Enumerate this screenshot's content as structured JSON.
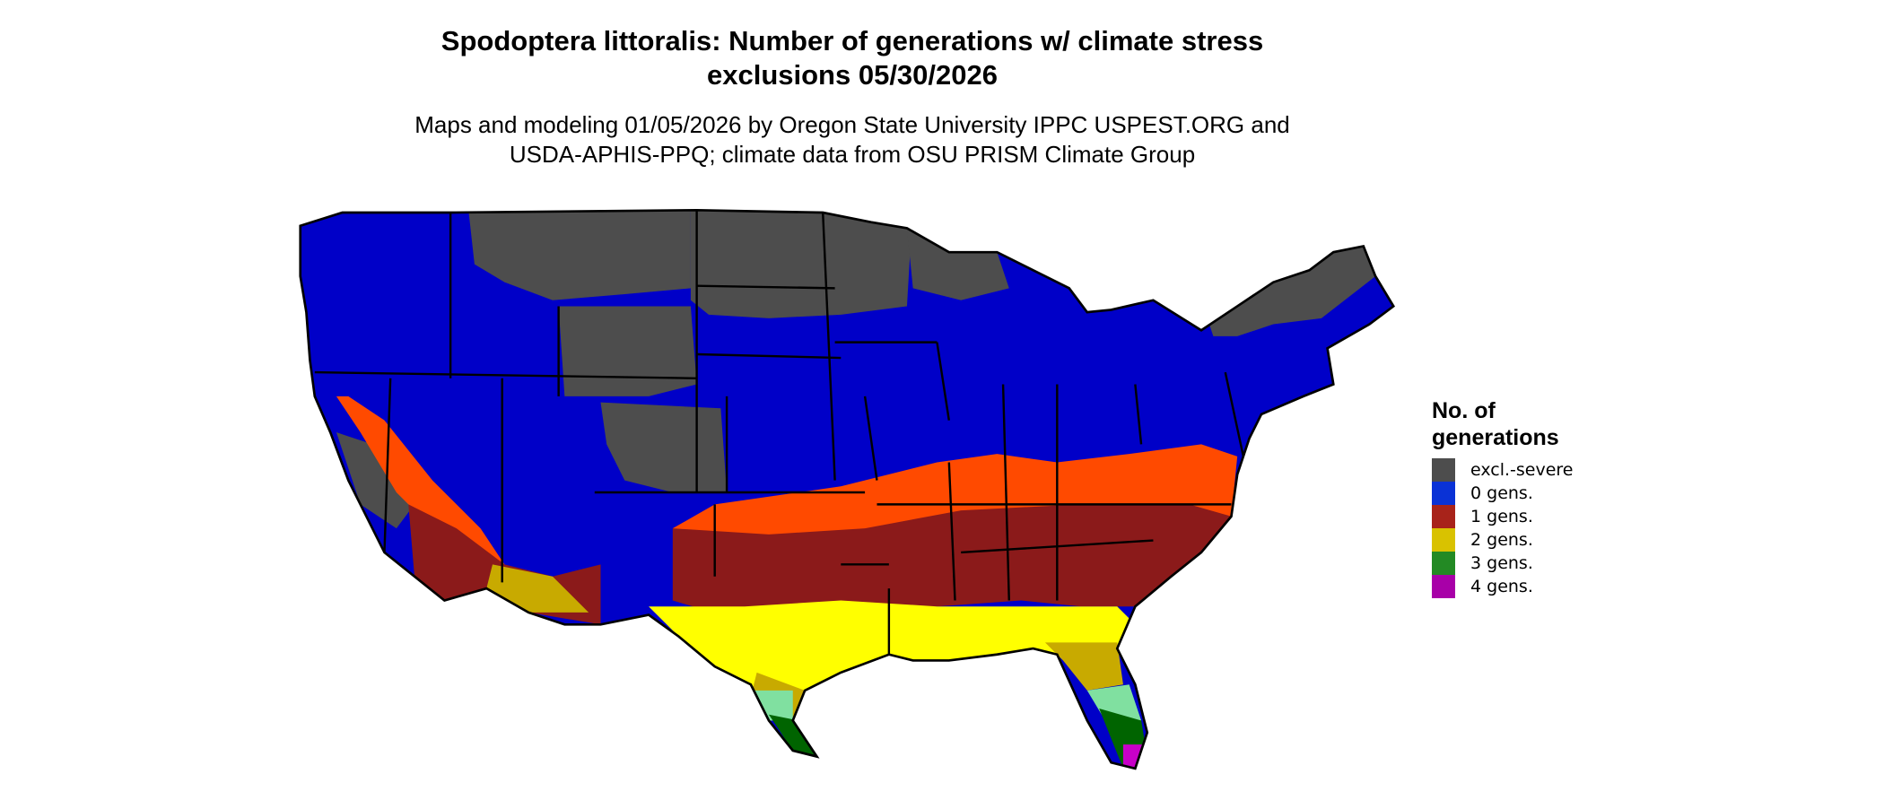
{
  "title_line1": "Spodoptera littoralis: Number of generations w/ climate stress",
  "title_line2": "exclusions 05/30/2026",
  "subtitle_line1": "Maps and modeling 01/05/2026 by Oregon State University IPPC USPEST.ORG and",
  "subtitle_line2": "USDA-APHIS-PPQ; climate data from OSU PRISM Climate Group",
  "legend": {
    "title_line1": "No. of",
    "title_line2": "generations",
    "items": [
      {
        "label": "excl.-severe",
        "color": "#4d4d4d"
      },
      {
        "label": "0 gens.",
        "color": "#0a32d6"
      },
      {
        "label": "1 gens.",
        "color": "#a8231a"
      },
      {
        "label": "2 gens.",
        "color": "#d9c200"
      },
      {
        "label": "3 gens.",
        "color": "#238a24"
      },
      {
        "label": "4 gens.",
        "color": "#a800a8"
      }
    ]
  },
  "map_colors": {
    "excluded": "#4d4d4d",
    "zero": "#0000c8",
    "one_low": "#ff4a00",
    "one_high": "#8b1a1a",
    "two_low": "#ffff00",
    "two_high": "#c8aa00",
    "three_low": "#80e0a0",
    "three_high": "#006400",
    "four": "#c800c8"
  }
}
